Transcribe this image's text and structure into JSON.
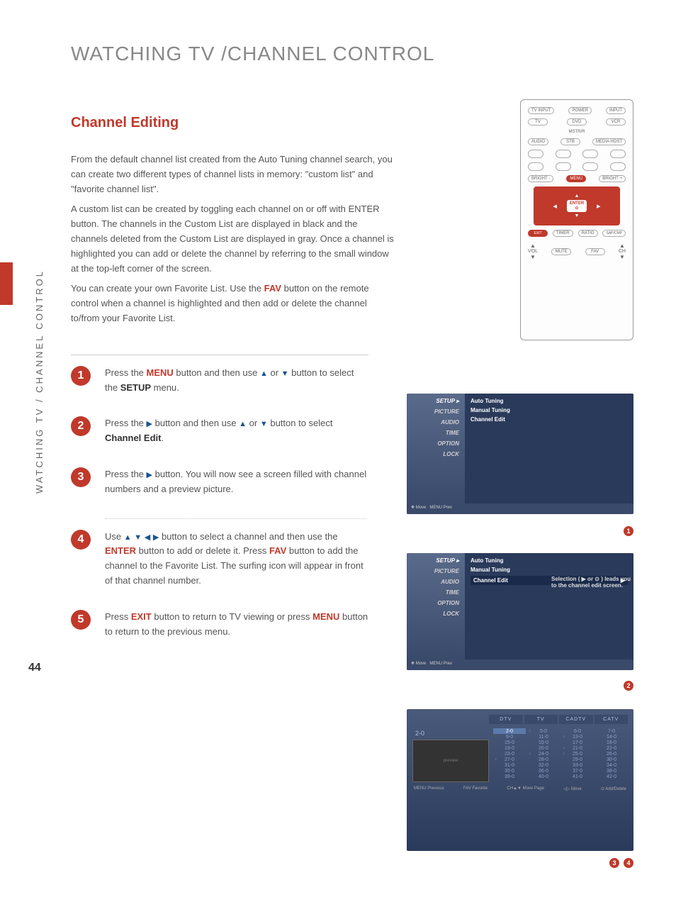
{
  "title": "WATCHING TV /CHANNEL CONTROL",
  "subtitle": "Channel Editing",
  "side_text": "WATCHING TV / CHANNEL CONTROL",
  "page_number": "44",
  "intro": {
    "p1": "From the default channel list created from the Auto Tuning channel search, you can create two different types of channel lists in memory: \"custom list\" and \"favorite channel list\".",
    "p2a": "A custom list can be created by toggling each channel on or off with ENTER button. The channels in the Custom List are displayed in black  and the channels deleted from the Custom List are displayed in gray. Once a channel is highlighted you can add or delete the channel by referring to the small window at the top-left corner of the screen.",
    "p3a": "You can create your own Favorite List. Use the ",
    "p3_fav": "FAV",
    "p3b": " button on the remote control when a channel is highlighted and then add or delete the channel to/from your Favorite List."
  },
  "steps": [
    {
      "num": "1",
      "parts": [
        "Press the ",
        {
          "red": "MENU"
        },
        " button and then use ",
        {
          "arrow": "▲"
        },
        " or ",
        {
          "arrow": "▼"
        },
        " button to select the ",
        {
          "bold": "SETUP"
        },
        " menu."
      ]
    },
    {
      "num": "2",
      "parts": [
        "Press the ",
        {
          "arrow": "▶"
        },
        " button and then use ",
        {
          "arrow": "▲"
        },
        " or ",
        {
          "arrow": "▼"
        },
        " button to select ",
        {
          "bold": "Channel Edit"
        },
        "."
      ]
    },
    {
      "num": "3",
      "parts": [
        "Press the ",
        {
          "arrow": "▶"
        },
        " button. You will now see a screen filled with channel numbers and a preview picture."
      ]
    },
    {
      "num": "4",
      "parts": [
        "Use ",
        {
          "arrow": "▲"
        },
        " ",
        {
          "arrow": "▼"
        },
        " ",
        {
          "arrow": "◀"
        },
        " ",
        {
          "arrow": "▶"
        },
        " button to select a channel and then use the ",
        {
          "red": "ENTER"
        },
        " button  to add or delete it. Press ",
        {
          "red": "FAV"
        },
        " button to add the channel to the Favorite List. The surfing icon will appear in front of that channel number."
      ]
    },
    {
      "num": "5",
      "parts": [
        "Press ",
        {
          "red": "EXIT"
        },
        " button  to return to TV viewing or press ",
        {
          "red": "MENU"
        },
        " button to return to the previous menu."
      ]
    }
  ],
  "remote": {
    "top_row": [
      "TV INPUT",
      "POWER",
      "INPUT"
    ],
    "row2": [
      "TV",
      "DVD",
      "VCR"
    ],
    "row2b": "MSTR/R",
    "row3": [
      "AUDIO",
      "STB",
      "MEDIA HOST"
    ],
    "menu_row": [
      "BRIGHT -",
      "MENU",
      "BRIGHT +"
    ],
    "enter": "ENTER",
    "exit_row": [
      "EXIT",
      "TIMER",
      "RATIO",
      "SAP/CMP"
    ],
    "vol": "VOL",
    "mute": "MUTE",
    "fav": "FAV",
    "ch": "CH"
  },
  "menu": {
    "side": [
      "SETUP",
      "PICTURE",
      "AUDIO",
      "TIME",
      "OPTION",
      "LOCK"
    ],
    "items": [
      "Auto Tuning",
      "Manual Tuning",
      "Channel Edit"
    ],
    "hint": "Selection ( ▶ or ⊙ ) leads you to the channel edit screen.",
    "footer_move": "Move",
    "footer_prev": "Prev"
  },
  "channel_grid": {
    "label": "2-0",
    "tabs": [
      "DTV",
      "TV",
      "CADTV",
      "CATV"
    ],
    "cols": [
      [
        "2-0",
        "9-0",
        "15-0",
        "19-0",
        "23-0",
        "27-0",
        "31-0",
        "35-0",
        "39-0"
      ],
      [
        "5-0",
        "11-0",
        "16-0",
        "20-0",
        "24-0",
        "28-0",
        "32-0",
        "36-0",
        "40-0"
      ],
      [
        "6-0",
        "13-0",
        "17-0",
        "21-0",
        "25-0",
        "29-0",
        "33-0",
        "37-0",
        "41-0"
      ],
      [
        "7-0",
        "14-0",
        "18-0",
        "22-0",
        "26-0",
        "30-0",
        "34-0",
        "38-0",
        "42-0"
      ]
    ],
    "surf": {
      "0": [
        0,
        5
      ],
      "1": [
        0,
        4
      ],
      "2": [
        1,
        3,
        4
      ],
      "3": []
    },
    "highlight": {
      "col": 0,
      "row": 0
    },
    "footer": [
      "MENU Previous",
      "FAV Favorite",
      "CH▲▼ Move Page",
      "◁▷ Move",
      "⊙ Add/Delete"
    ]
  },
  "badges": {
    "b1": "1",
    "b2": "2",
    "b3": "3",
    "b4": "4"
  },
  "colors": {
    "accent_red": "#c0392b",
    "menu_bg": "#4a5a7a",
    "menu_dark": "#2a3a5a",
    "text_gray": "#555555"
  }
}
